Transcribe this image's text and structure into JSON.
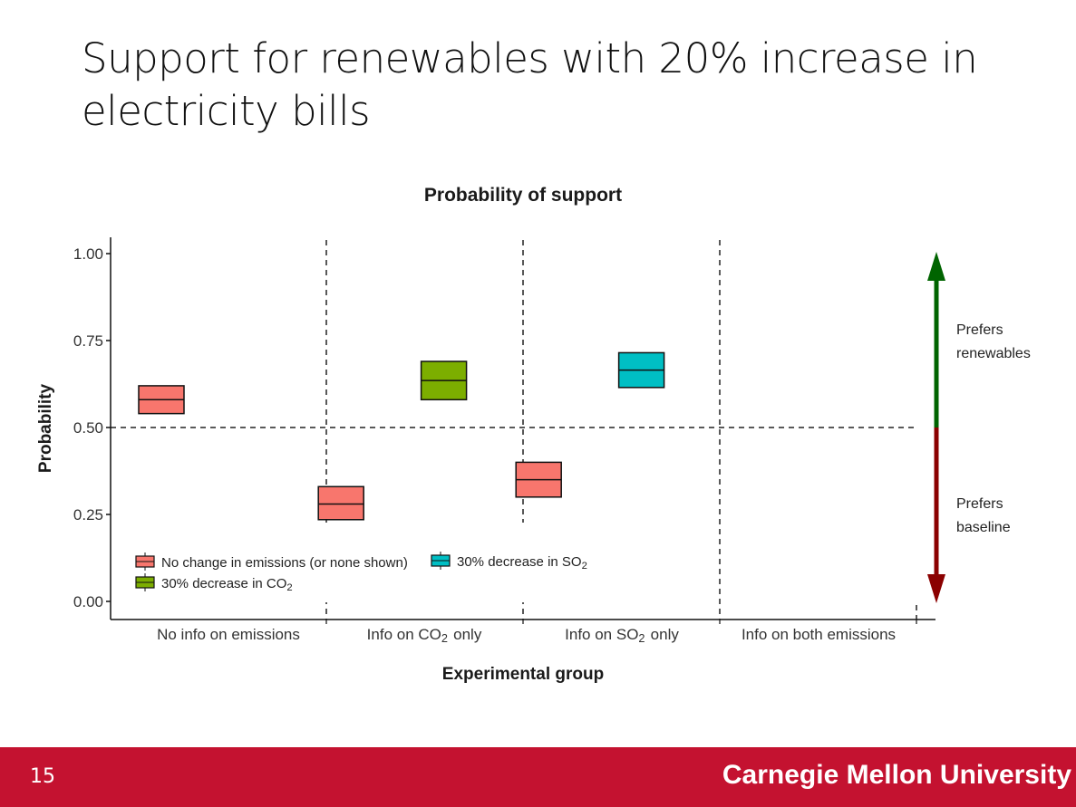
{
  "slide": {
    "title": "Support for renewables with 20% increase in electricity bills",
    "page_number": "15",
    "footer_text": "Carnegie Mellon University"
  },
  "colors": {
    "footer": "#c41230",
    "no_change": "#f8766d",
    "co2_decrease": "#7cae00",
    "so2_decrease": "#00bfc4",
    "prefers_renewables_arrow": "#006400",
    "prefers_baseline_arrow": "#8b0000"
  },
  "chart_data": {
    "type": "boxplot",
    "title": "Probability of support",
    "xlabel": "Experimental group",
    "ylabel": "Probability",
    "categories": [
      "No info on emissions",
      "Info on CO₂ only",
      "Info on SO₂ only",
      "Info on both emissions"
    ],
    "ylim": [
      0,
      1
    ],
    "yticks": [
      "0.00",
      "0.25",
      "0.50",
      "0.75",
      "1.00"
    ],
    "reference_line_y": 0.5,
    "grid": false,
    "series": [
      {
        "name": "No change in emissions (or none shown)",
        "color": "#f8766d",
        "boxes": [
          {
            "category": "No info on emissions",
            "low": 0.54,
            "median": 0.58,
            "high": 0.62
          },
          {
            "category": "Info on CO₂ only",
            "low": 0.235,
            "median": 0.28,
            "high": 0.33
          },
          {
            "category": "Info on SO₂ only",
            "low": 0.3,
            "median": 0.35,
            "high": 0.4
          }
        ]
      },
      {
        "name": "30% decrease in CO₂",
        "color": "#7cae00",
        "boxes": [
          {
            "category": "Info on CO₂ only",
            "low": 0.58,
            "median": 0.635,
            "high": 0.69
          }
        ]
      },
      {
        "name": "30% decrease in SO₂",
        "color": "#00bfc4",
        "boxes": [
          {
            "category": "Info on SO₂ only",
            "low": 0.615,
            "median": 0.665,
            "high": 0.715
          }
        ]
      }
    ],
    "legend_position": "bottom-left inside plot",
    "annotations": [
      {
        "text": "Prefers renewables",
        "direction": "up",
        "color": "#006400"
      },
      {
        "text": "Prefers baseline",
        "direction": "down",
        "color": "#8b0000"
      }
    ]
  }
}
